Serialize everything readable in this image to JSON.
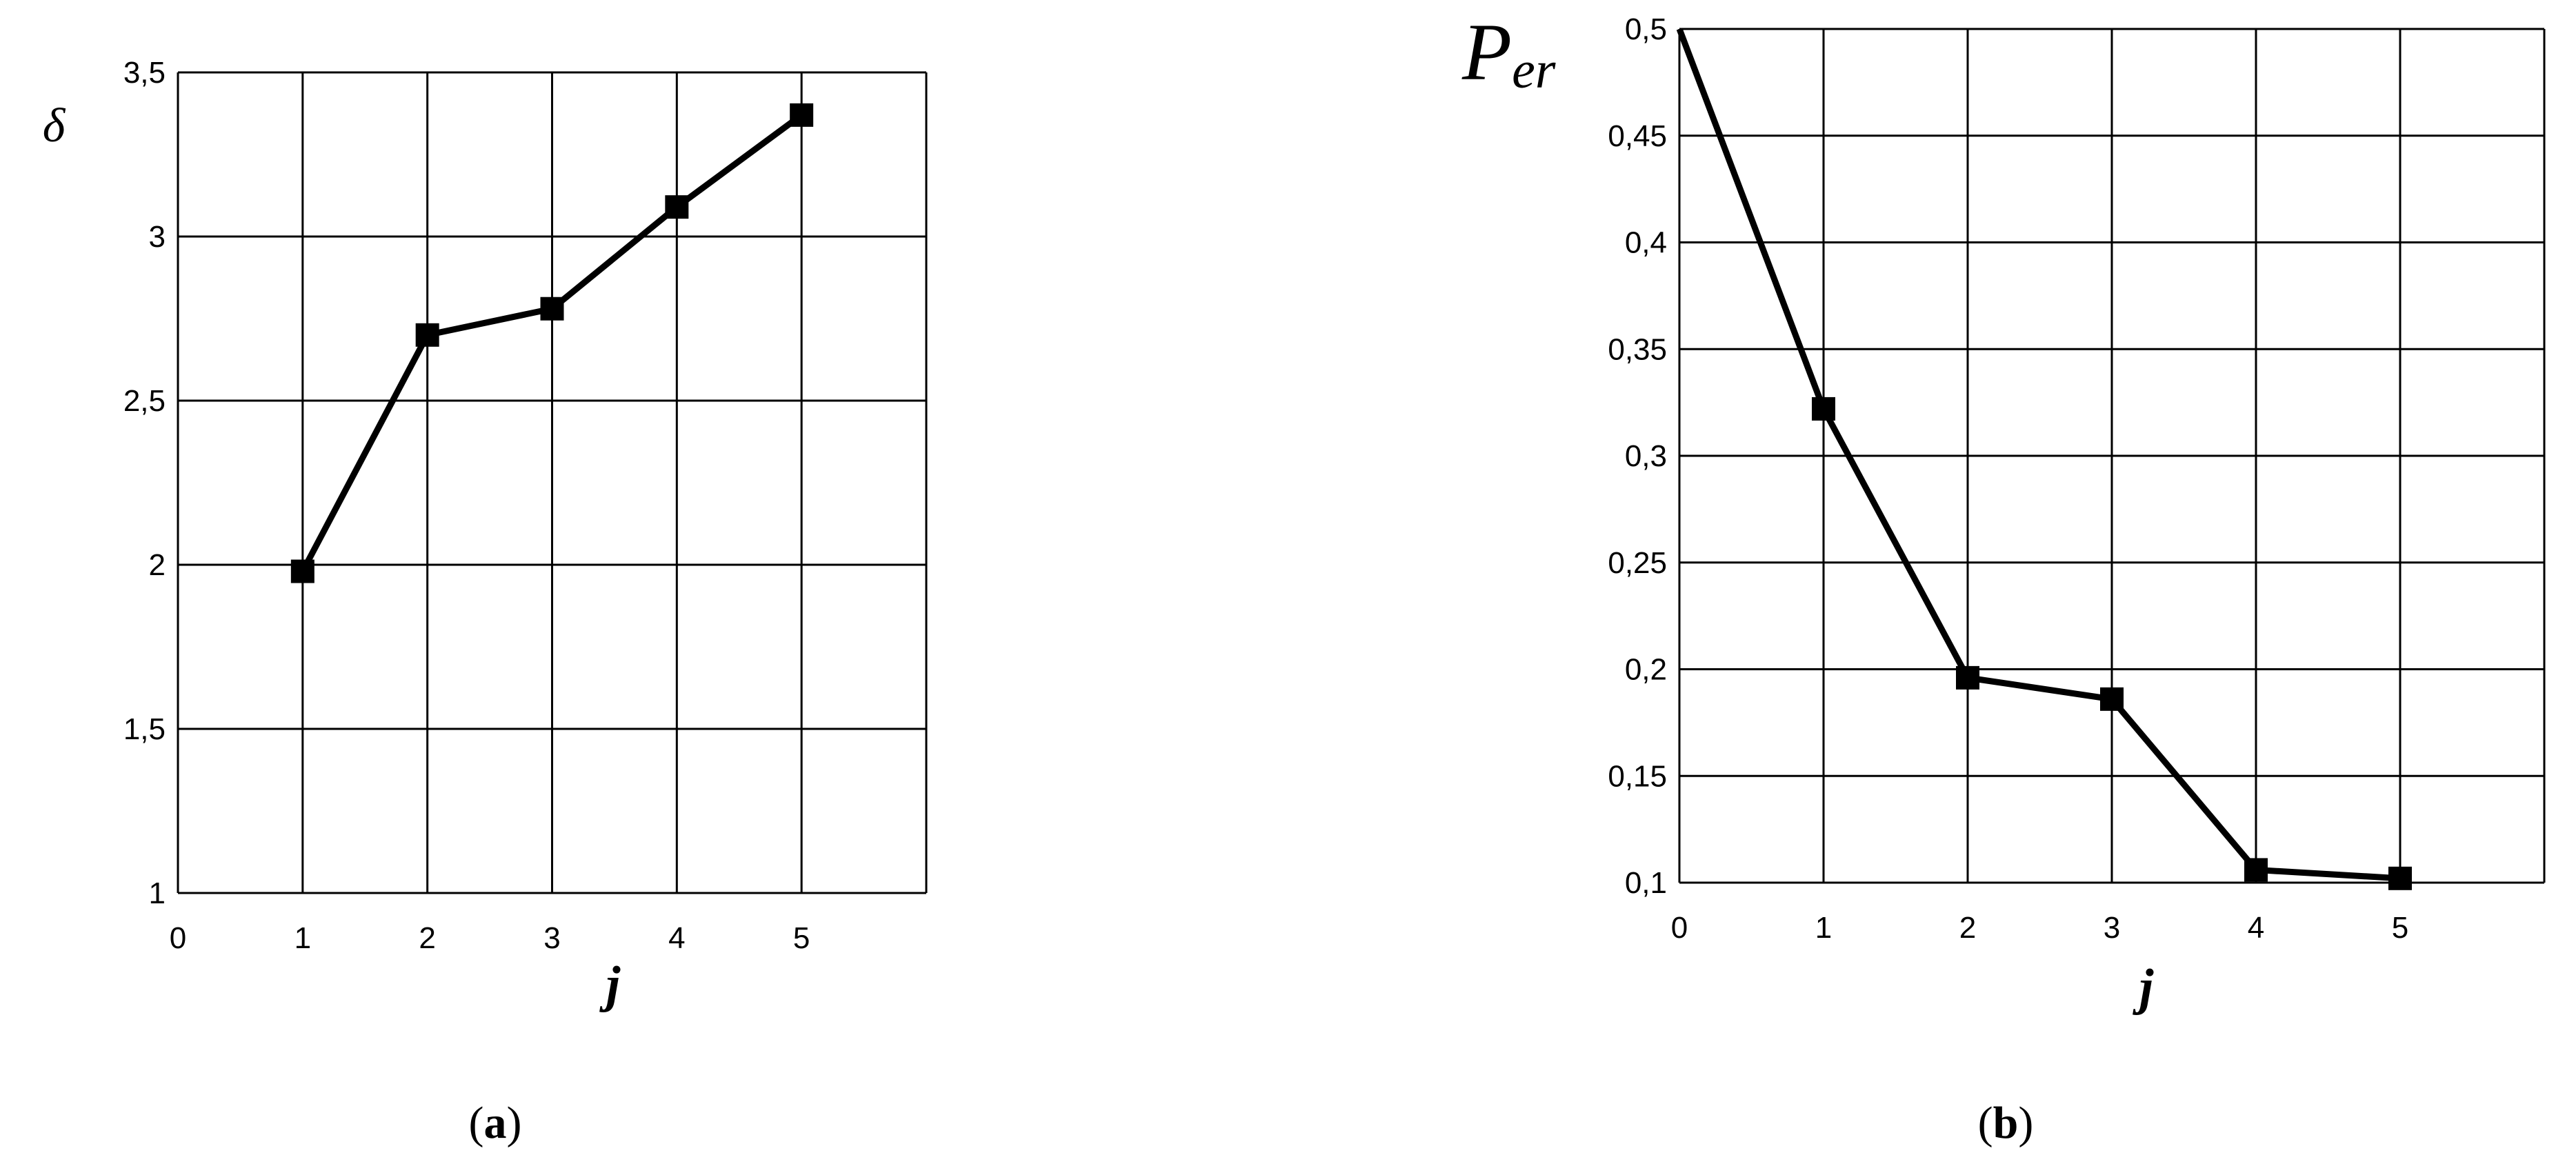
{
  "chart_data": [
    {
      "type": "line",
      "panel_label": "a",
      "xlabel": "j",
      "ylabel": "δ",
      "xlim": [
        0,
        6
      ],
      "ylim": [
        1,
        3.5
      ],
      "x_ticks": [
        "0",
        "1",
        "2",
        "3",
        "4",
        "5"
      ],
      "y_ticks": [
        "1",
        "1,5",
        "2",
        "2,5",
        "3",
        "3,5"
      ],
      "grid": true,
      "series": [
        {
          "x": [
            1,
            2,
            3,
            4,
            5
          ],
          "values": [
            1.98,
            2.7,
            2.78,
            3.09,
            3.37
          ],
          "marker": "square",
          "color": "#000000"
        }
      ]
    },
    {
      "type": "line",
      "panel_label": "b",
      "xlabel": "j",
      "ylabel_main": "P",
      "ylabel_sub": "er",
      "xlim": [
        0,
        6
      ],
      "ylim": [
        0.1,
        0.5
      ],
      "x_ticks": [
        "0",
        "1",
        "2",
        "3",
        "4",
        "5"
      ],
      "y_ticks": [
        "0,1",
        "0,15",
        "0,2",
        "0,25",
        "0,3",
        "0,35",
        "0,4",
        "0,45",
        "0,5"
      ],
      "grid": true,
      "series": [
        {
          "x": [
            0,
            1,
            2,
            3,
            4,
            5
          ],
          "values": [
            0.5,
            0.322,
            0.196,
            0.186,
            0.106,
            0.102
          ],
          "marker": "square",
          "marker_x": [
            1,
            2,
            3,
            4,
            5
          ],
          "color": "#000000"
        }
      ]
    }
  ]
}
